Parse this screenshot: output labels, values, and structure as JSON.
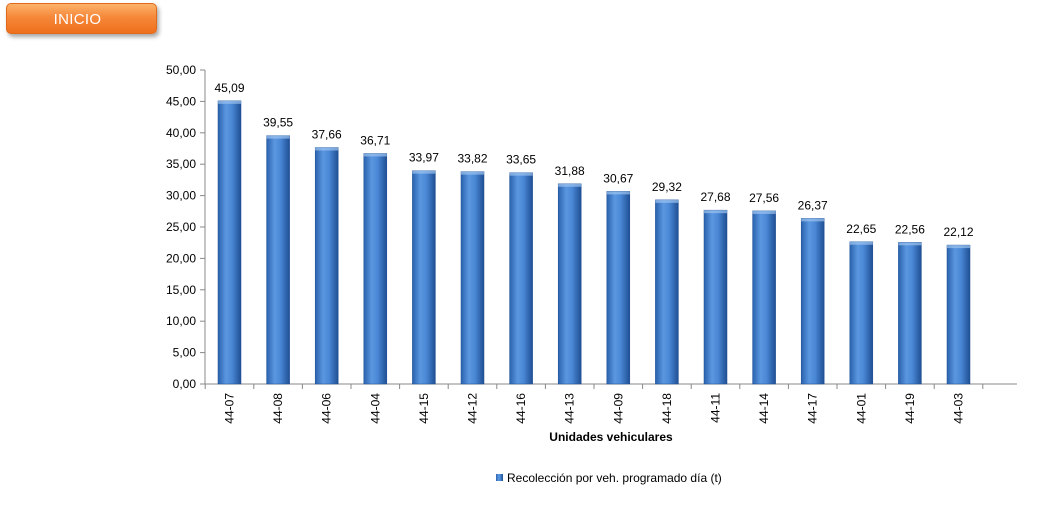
{
  "header": {
    "inicio_label": "INICIO"
  },
  "colors": {
    "bar": "#3d7fd1",
    "bar_dark": "#1f4f93",
    "bar_light": "#6aa3e8",
    "axis": "#888888",
    "button": "#f6883a"
  },
  "chart_data": {
    "type": "bar",
    "title": "",
    "xlabel": "Unidades vehiculares",
    "ylabel": "",
    "ylim": [
      0,
      50
    ],
    "yticks": [
      "0,00",
      "5,00",
      "10,00",
      "15,00",
      "20,00",
      "25,00",
      "30,00",
      "35,00",
      "40,00",
      "45,00",
      "50,00"
    ],
    "grid": false,
    "legend_position": "bottom",
    "categories": [
      "44-07",
      "44-08",
      "44-06",
      "44-04",
      "44-15",
      "44-12",
      "44-16",
      "44-13",
      "44-09",
      "44-18",
      "44-11",
      "44-14",
      "44-17",
      "44-01",
      "44-19",
      "44-03"
    ],
    "series": [
      {
        "name": "Recolección por veh. programado día (t)",
        "values": [
          45.09,
          39.55,
          37.66,
          36.71,
          33.97,
          33.82,
          33.65,
          31.88,
          30.67,
          29.32,
          27.68,
          27.56,
          26.37,
          22.65,
          22.56,
          22.12
        ],
        "labels": [
          "45,09",
          "39,55",
          "37,66",
          "36,71",
          "33,97",
          "33,82",
          "33,65",
          "31,88",
          "30,67",
          "29,32",
          "27,68",
          "27,56",
          "26,37",
          "22,65",
          "22,56",
          "22,12"
        ]
      }
    ]
  }
}
